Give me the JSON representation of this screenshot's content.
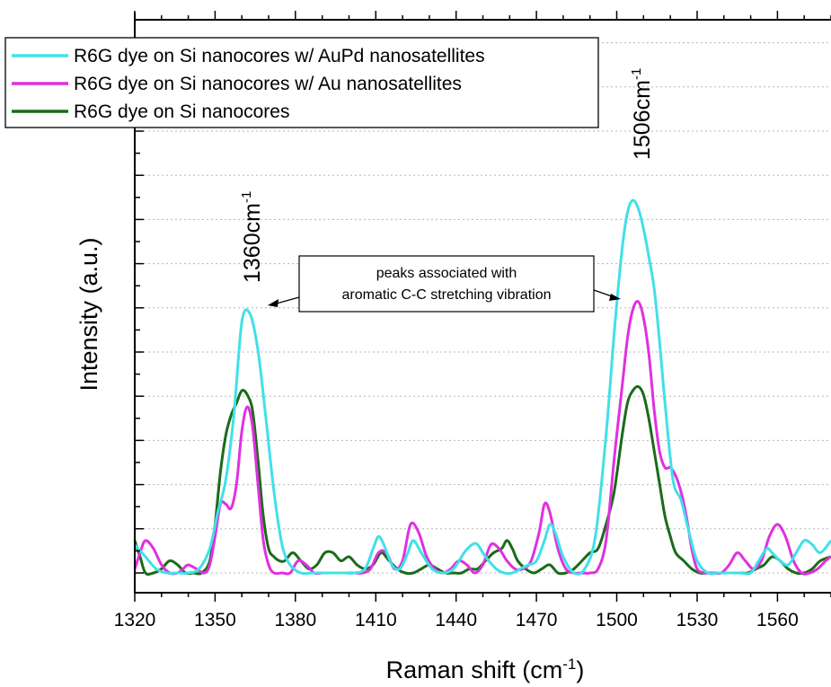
{
  "chart_data": {
    "type": "line",
    "xlabel": "Raman shift (cm",
    "xlabel_sup": "-1",
    "xlabel_close": ")",
    "ylabel": "Intensity (a.u.)",
    "xlim": [
      1320,
      1580
    ],
    "ylim": [
      0,
      100
    ],
    "xticks": [
      "1320",
      "1350",
      "1380",
      "1410",
      "1440",
      "1470",
      "1500",
      "1530",
      "1560"
    ],
    "grid": "horizontal-dotted",
    "legend_position": "top-left",
    "series": [
      {
        "name": "R6G dye on Si nanocores w/ AuPd nanosatellites",
        "color": "#40e0e8",
        "x": [
          1320,
          1324,
          1328,
          1332,
          1336,
          1340,
          1344,
          1348,
          1351,
          1354,
          1357,
          1360,
          1363,
          1366,
          1369,
          1372,
          1375,
          1378,
          1382,
          1386,
          1390,
          1394,
          1398,
          1402,
          1406,
          1409,
          1411,
          1413,
          1416,
          1419,
          1422,
          1424,
          1427,
          1431,
          1435,
          1439,
          1443,
          1446,
          1448,
          1451,
          1455,
          1458,
          1461,
          1464,
          1467,
          1470,
          1473,
          1475,
          1477,
          1480,
          1484,
          1488,
          1492,
          1496,
          1499,
          1502,
          1504,
          1506,
          1508,
          1510,
          1512,
          1514,
          1516,
          1518,
          1521,
          1524,
          1527,
          1530,
          1534,
          1538,
          1542,
          1546,
          1550,
          1553,
          1556,
          1558,
          1561,
          1564,
          1567,
          1570,
          1573,
          1576,
          1580
        ],
        "y": [
          7,
          4,
          1,
          0,
          0,
          0,
          1,
          6,
          15,
          23,
          39,
          62,
          64,
          55,
          38,
          20,
          7,
          2,
          0,
          0,
          0,
          0,
          0,
          0,
          1,
          6,
          9,
          7,
          2,
          1,
          5,
          8,
          5,
          1,
          0,
          1,
          5,
          7,
          7,
          4,
          1,
          0,
          0,
          1,
          2,
          3,
          8,
          12,
          10,
          4,
          0,
          1,
          9,
          34,
          59,
          80,
          89,
          92,
          90,
          85,
          78,
          70,
          57,
          42,
          23,
          18,
          10,
          3,
          0,
          0,
          0,
          0,
          0,
          3,
          6,
          5,
          3,
          2,
          5,
          8,
          7,
          5,
          8
        ]
      },
      {
        "name": "R6G dye on Si nanocores w/ Au nanosatellites",
        "color": "#e030e0",
        "x": [
          1320,
          1322,
          1324,
          1327,
          1330,
          1333,
          1336,
          1338,
          1340,
          1343,
          1346,
          1348,
          1350,
          1352,
          1354,
          1356,
          1358,
          1360,
          1362,
          1364,
          1366,
          1368,
          1370,
          1372,
          1375,
          1378,
          1381,
          1384,
          1387,
          1390,
          1393,
          1396,
          1399,
          1402,
          1405,
          1408,
          1411,
          1414,
          1417,
          1420,
          1423,
          1426,
          1429,
          1432,
          1435,
          1438,
          1441,
          1444,
          1447,
          1450,
          1453,
          1456,
          1459,
          1462,
          1465,
          1468,
          1471,
          1473,
          1475,
          1478,
          1481,
          1484,
          1487,
          1490,
          1493,
          1496,
          1499,
          1502,
          1504,
          1506,
          1508,
          1510,
          1512,
          1514,
          1516,
          1518,
          1520,
          1522,
          1524,
          1526,
          1528,
          1530,
          1533,
          1536,
          1539,
          1542,
          1545,
          1548,
          1551,
          1554,
          1557,
          1560,
          1563,
          1566,
          1569,
          1572,
          1575,
          1578,
          1580
        ],
        "y": [
          1,
          5,
          8,
          6,
          2,
          0,
          0,
          1,
          2,
          1,
          0,
          2,
          9,
          17,
          17,
          16,
          22,
          35,
          41,
          36,
          22,
          8,
          2,
          0,
          0,
          0,
          3,
          2,
          0,
          0,
          0,
          0,
          0,
          0,
          0,
          1,
          5,
          5,
          1,
          3,
          12,
          10,
          4,
          1,
          0,
          1,
          3,
          2,
          0,
          2,
          7,
          6,
          3,
          1,
          1,
          3,
          10,
          17,
          15,
          6,
          1,
          0,
          0,
          0,
          1,
          8,
          28,
          46,
          58,
          65,
          67,
          63,
          54,
          40,
          30,
          26,
          26,
          24,
          20,
          14,
          6,
          1,
          0,
          0,
          0,
          2,
          5,
          3,
          1,
          3,
          9,
          12,
          9,
          3,
          0,
          0,
          1,
          3,
          4
        ]
      },
      {
        "name": "R6G dye on Si nanocores",
        "color": "#1a6b1a",
        "x": [
          1320,
          1322,
          1324,
          1327,
          1330,
          1333,
          1336,
          1339,
          1342,
          1345,
          1348,
          1350,
          1352,
          1354,
          1356,
          1358,
          1360,
          1362,
          1364,
          1366,
          1368,
          1370,
          1372,
          1374,
          1376,
          1379,
          1382,
          1385,
          1388,
          1391,
          1394,
          1397,
          1400,
          1403,
          1406,
          1409,
          1412,
          1415,
          1418,
          1421,
          1424,
          1427,
          1430,
          1433,
          1436,
          1439,
          1442,
          1445,
          1448,
          1451,
          1454,
          1457,
          1459,
          1461,
          1463,
          1466,
          1469,
          1472,
          1475,
          1478,
          1481,
          1484,
          1487,
          1490,
          1493,
          1496,
          1499,
          1502,
          1504,
          1506,
          1508,
          1510,
          1512,
          1514,
          1516,
          1518,
          1520,
          1522,
          1525,
          1528,
          1531,
          1534,
          1537,
          1540,
          1543,
          1546,
          1549,
          1552,
          1555,
          1558,
          1561,
          1564,
          1567,
          1570,
          1573,
          1576,
          1580
        ],
        "y": [
          8,
          4,
          0,
          0,
          1,
          3,
          2,
          0,
          0,
          0,
          3,
          12,
          25,
          34,
          39,
          42,
          45,
          44,
          40,
          28,
          14,
          6,
          4,
          3,
          3,
          5,
          3,
          1,
          2,
          5,
          5,
          3,
          4,
          2,
          1,
          2,
          5,
          3,
          1,
          0,
          0,
          1,
          2,
          1,
          0,
          0,
          0,
          1,
          1,
          3,
          5,
          6,
          8,
          6,
          3,
          1,
          0,
          1,
          2,
          0,
          0,
          1,
          3,
          5,
          6,
          12,
          20,
          34,
          42,
          45,
          46,
          44,
          38,
          30,
          22,
          14,
          9,
          5,
          3,
          1,
          0,
          0,
          0,
          0,
          0,
          0,
          0,
          1,
          2,
          4,
          3,
          1,
          0,
          0,
          1,
          3,
          4
        ]
      }
    ],
    "annotations": {
      "peak1_label": "1360cm",
      "peak1_sup": "-1",
      "peak2_label": "1506cm",
      "peak2_sup": "-1",
      "box_line1": "peaks associated with",
      "box_line2": "aromatic C-C stretching vibration"
    }
  }
}
